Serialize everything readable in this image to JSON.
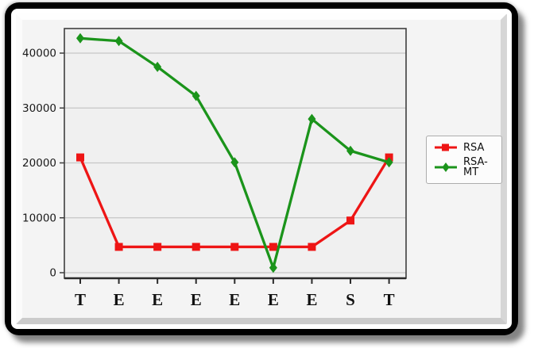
{
  "frame": {
    "outer_color": "#000000",
    "panel_color": "#ffffff",
    "content_color": "#f4f4f4",
    "shadow_color": "#6e6e6e"
  },
  "chart_data": {
    "type": "line",
    "title": "",
    "xlabel": "",
    "ylabel": "",
    "categories": [
      "T",
      "E",
      "E",
      "E",
      "E",
      "E",
      "E",
      "S",
      "T"
    ],
    "series": [
      {
        "name": "RSA",
        "color": "#ee1515",
        "marker": "square",
        "values": [
          21000,
          4700,
          4700,
          4700,
          4700,
          4700,
          4700,
          9500,
          21000
        ]
      },
      {
        "name": "RSA-MT",
        "color": "#1b941b",
        "marker": "diamond",
        "values": [
          42700,
          42200,
          37500,
          32200,
          20100,
          900,
          28000,
          22200,
          20100
        ]
      }
    ],
    "ylim": [
      0,
      44500
    ],
    "yticks": [
      0,
      10000,
      20000,
      30000,
      40000
    ],
    "grid": true,
    "gridline_color": "#c6c6c6",
    "plot_bg_color": "#f0f0f0",
    "spine_color": "#3f3f3f",
    "tick_label_color": "#1a1a1a",
    "legend_position": "right"
  }
}
